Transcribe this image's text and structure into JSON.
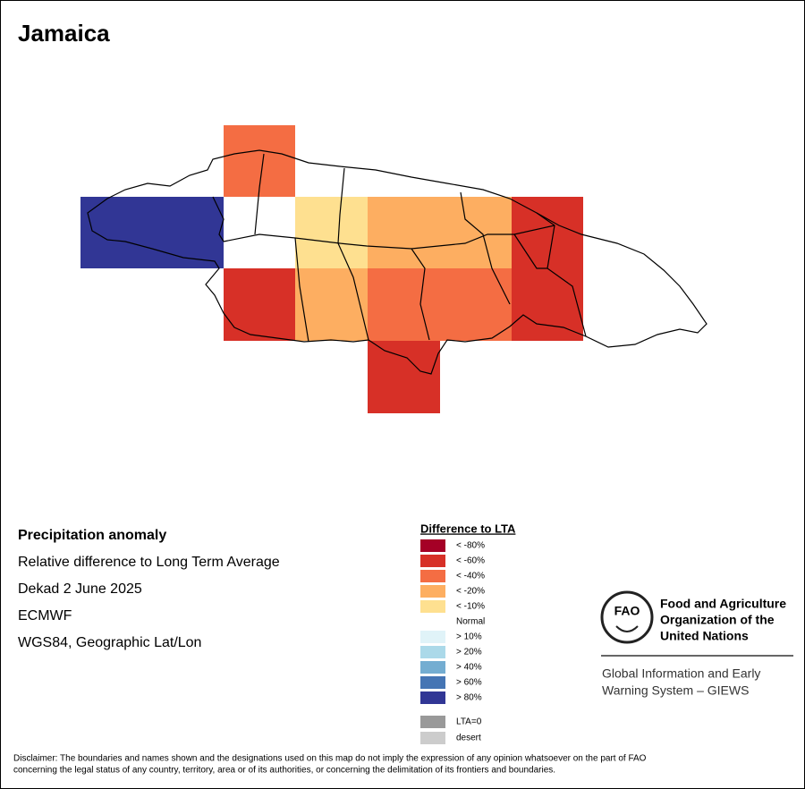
{
  "header": {
    "title": "Jamaica"
  },
  "info": {
    "heading": "Precipitation anomaly",
    "lines": [
      "Relative difference to Long Term Average",
      "Dekad 2 June 2025",
      "ECMWF",
      "WGS84, Geographic Lat/Lon"
    ]
  },
  "legend": {
    "title": "Difference to LTA",
    "items": [
      {
        "label": "< -80%",
        "color": "#a50026"
      },
      {
        "label": "< -60%",
        "color": "#d73027"
      },
      {
        "label": "< -40%",
        "color": "#f46d43"
      },
      {
        "label": "< -20%",
        "color": "#fdae61"
      },
      {
        "label": "< -10%",
        "color": "#fee090"
      },
      {
        "label": "Normal",
        "color": "#ffffff"
      },
      {
        "label": "> 10%",
        "color": "#e0f3f8"
      },
      {
        "label": "> 20%",
        "color": "#abd9e9"
      },
      {
        "label": "> 40%",
        "color": "#74add1"
      },
      {
        "label": "> 60%",
        "color": "#4575b4"
      },
      {
        "label": "> 80%",
        "color": "#313695"
      },
      {
        "label": "LTA=0",
        "color": "#999999"
      },
      {
        "label": "desert",
        "color": "#cccccc"
      }
    ]
  },
  "logo": {
    "emblem": "FAO",
    "org_lines": [
      "Food and Agriculture",
      "Organization of the",
      "United Nations"
    ],
    "system_lines": [
      "Global Information and Early",
      "Warning System – GIEWS"
    ]
  },
  "disclaimer": [
    "Disclaimer: The boundaries and names shown and the designations used on this map do not imply the expression of any opinion whatsoever on the part of FAO",
    "concerning the legal status of any country, territory, area or of its authorities, or concerning the delimitation of its frontiers and boundaries."
  ]
}
